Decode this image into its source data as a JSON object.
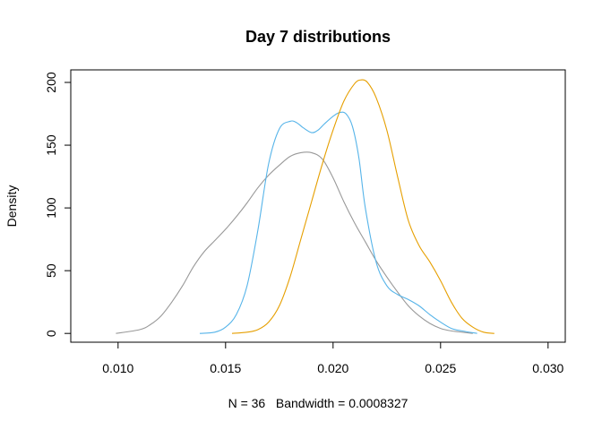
{
  "chart_data": {
    "type": "line",
    "title": "Day 7 distributions",
    "xlabel": "N = 36   Bandwidth = 0.0008327",
    "ylabel": "Density",
    "xlim": [
      0.0078,
      0.0308
    ],
    "ylim": [
      -7,
      210
    ],
    "xticks": [
      0.01,
      0.015,
      0.02,
      0.025,
      0.03
    ],
    "xtick_labels": [
      "0.010",
      "0.015",
      "0.020",
      "0.025",
      "0.030"
    ],
    "yticks": [
      0,
      50,
      100,
      150,
      200
    ],
    "ytick_labels": [
      "0",
      "50",
      "100",
      "150",
      "200"
    ],
    "grid": false,
    "series": [
      {
        "color": "#999999",
        "x": [
          0.0099,
          0.011,
          0.0115,
          0.012,
          0.0125,
          0.013,
          0.0135,
          0.014,
          0.0145,
          0.015,
          0.0155,
          0.016,
          0.0165,
          0.017,
          0.0175,
          0.018,
          0.0185,
          0.019,
          0.0195,
          0.02,
          0.0205,
          0.021,
          0.0215,
          0.022,
          0.0225,
          0.023,
          0.0235,
          0.024,
          0.0245,
          0.025,
          0.0255,
          0.026,
          0.0265
        ],
        "y": [
          0,
          3,
          7,
          14,
          25,
          38,
          53,
          65,
          74,
          83,
          93,
          104,
          116,
          126,
          134,
          141,
          144,
          144,
          139,
          124,
          105,
          88,
          73,
          58,
          45,
          33,
          22,
          14,
          8,
          4,
          2,
          1,
          0
        ]
      },
      {
        "color": "#56B4E9",
        "x": [
          0.0138,
          0.0145,
          0.015,
          0.0155,
          0.016,
          0.0165,
          0.017,
          0.0175,
          0.018,
          0.0183,
          0.0186,
          0.019,
          0.0193,
          0.0196,
          0.02,
          0.0203,
          0.0206,
          0.0209,
          0.0212,
          0.0215,
          0.022,
          0.0225,
          0.023,
          0.0235,
          0.024,
          0.0245,
          0.025,
          0.0255,
          0.026,
          0.0267
        ],
        "y": [
          0,
          1,
          5,
          15,
          38,
          82,
          135,
          163,
          169,
          168,
          164,
          160,
          162,
          167,
          173,
          176,
          175,
          165,
          140,
          100,
          57,
          38,
          31,
          27,
          22,
          15,
          9,
          4,
          2,
          0
        ]
      },
      {
        "color": "#E69F00",
        "x": [
          0.0153,
          0.016,
          0.0165,
          0.017,
          0.0175,
          0.018,
          0.0185,
          0.019,
          0.0195,
          0.02,
          0.0205,
          0.021,
          0.0213,
          0.0216,
          0.022,
          0.0225,
          0.023,
          0.0235,
          0.024,
          0.0245,
          0.025,
          0.0255,
          0.026,
          0.0265,
          0.027,
          0.0275
        ],
        "y": [
          0,
          1,
          3,
          9,
          22,
          45,
          75,
          105,
          135,
          162,
          185,
          199,
          202,
          200,
          188,
          162,
          125,
          90,
          70,
          57,
          42,
          25,
          12,
          5,
          1,
          0
        ]
      }
    ]
  }
}
